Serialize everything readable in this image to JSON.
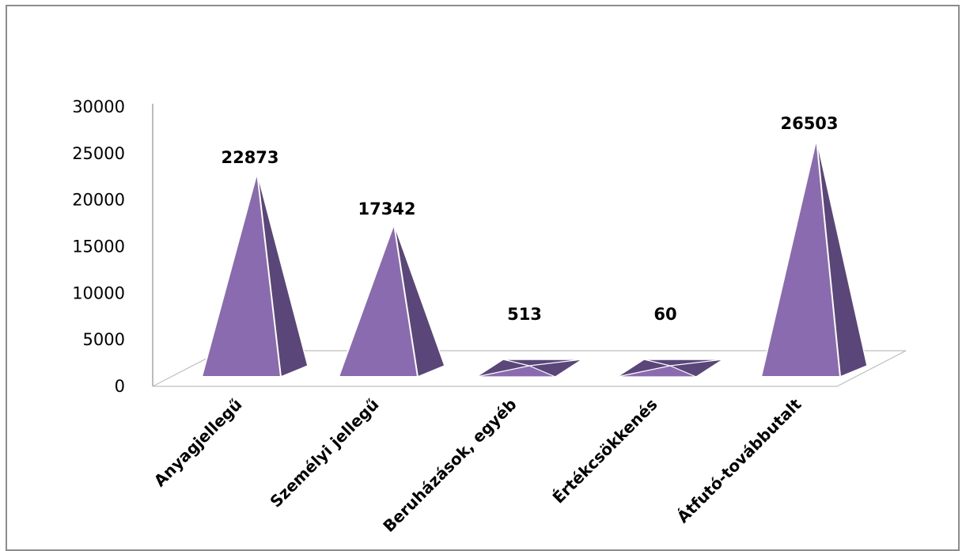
{
  "chart_data": {
    "type": "bar",
    "bar_shape": "pyramid-3d",
    "title": "",
    "xlabel": "",
    "ylabel": "",
    "categories": [
      "Anyagjellegű",
      "Személyi jellegű",
      "Beruházások, egyéb",
      "Értékcsökkenés",
      "Átfutó-továbbutalt"
    ],
    "values": [
      22873,
      17342,
      513,
      60,
      26503
    ],
    "data_labels": [
      "22873",
      "17342",
      "513",
      "60",
      "26503"
    ],
    "ylim": [
      0,
      30000
    ],
    "yticks": [
      0,
      5000,
      10000,
      15000,
      20000,
      25000,
      30000
    ],
    "ytick_labels": [
      "0",
      "5000",
      "10000",
      "15000",
      "20000",
      "25000",
      "30000"
    ],
    "grid": false,
    "legend": "none",
    "colors": {
      "front": "#8a6bb0",
      "side": "#5a4678",
      "outline": "#ffffff",
      "floor": "#ffffff",
      "floor_edge": "#bfbfbf",
      "axis": "#a6a6a6",
      "frame": "#8c8c8c"
    }
  }
}
